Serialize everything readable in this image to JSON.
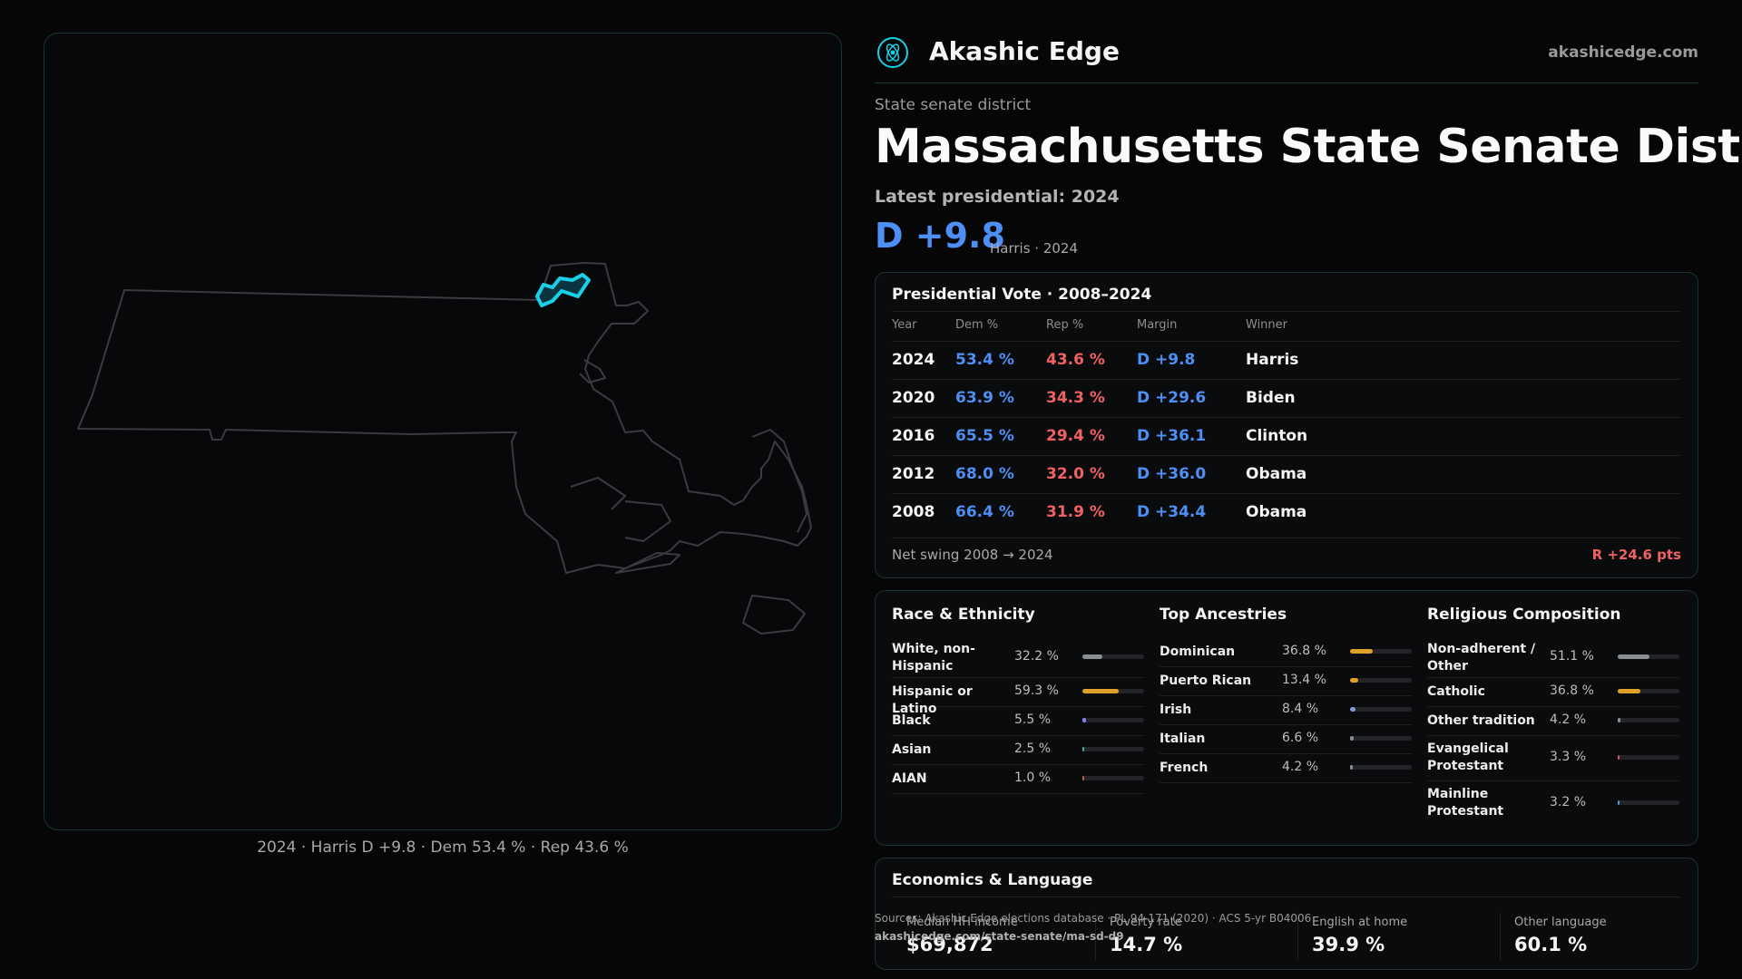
{
  "map": {
    "caption": "2024 · Harris D +9.8 · Dem 53.4 % · Rep 43.6 %"
  },
  "brand": {
    "name": "Akashic Edge",
    "site": "akashicedge.com",
    "logo_icon": "atom-logo-icon"
  },
  "header": {
    "kicker": "State senate district",
    "title": "Massachusetts State Senate District D",
    "latest_label": "Latest presidential: 2024",
    "margin": "D +9.8",
    "margin_sub": "Harris · 2024"
  },
  "presidential": {
    "title": "Presidential Vote · 2008–2024",
    "headers": [
      "Year",
      "Dem %",
      "Rep %",
      "Margin",
      "Winner"
    ],
    "rows": [
      {
        "year": "2024",
        "dem": "53.4 %",
        "rep": "43.6 %",
        "margin": "D +9.8",
        "winner": "Harris"
      },
      {
        "year": "2020",
        "dem": "63.9 %",
        "rep": "34.3 %",
        "margin": "D +29.6",
        "winner": "Biden"
      },
      {
        "year": "2016",
        "dem": "65.5 %",
        "rep": "29.4 %",
        "margin": "D +36.1",
        "winner": "Clinton"
      },
      {
        "year": "2012",
        "dem": "68.0 %",
        "rep": "32.0 %",
        "margin": "D +36.0",
        "winner": "Obama"
      },
      {
        "year": "2008",
        "dem": "66.4 %",
        "rep": "31.9 %",
        "margin": "D +34.4",
        "winner": "Obama"
      }
    ],
    "swing_label": "Net swing 2008 → 2024",
    "swing_value": "R +24.6 pts"
  },
  "race": {
    "title": "Race & Ethnicity",
    "items": [
      {
        "label": "White, non-Hispanic",
        "value": "32.2 %",
        "pct": 32.2,
        "color": "#8a8d93"
      },
      {
        "label": "Hispanic or Latino",
        "value": "59.3 %",
        "pct": 59.3,
        "color": "#e0a12a"
      },
      {
        "label": "Black",
        "value": "5.5 %",
        "pct": 5.5,
        "color": "#8a7cf0"
      },
      {
        "label": "Asian",
        "value": "2.5 %",
        "pct": 2.5,
        "color": "#3bb39a"
      },
      {
        "label": "AIAN",
        "value": "1.0 %",
        "pct": 1.0,
        "color": "#c0603a"
      }
    ]
  },
  "ancestry": {
    "title": "Top Ancestries",
    "items": [
      {
        "label": "Dominican",
        "value": "36.8 %",
        "pct": 36.8,
        "color": "#e0a12a"
      },
      {
        "label": "Puerto Rican",
        "value": "13.4 %",
        "pct": 13.4,
        "color": "#e0a12a"
      },
      {
        "label": "Irish",
        "value": "8.4 %",
        "pct": 8.4,
        "color": "#7f9bd8"
      },
      {
        "label": "Italian",
        "value": "6.6 %",
        "pct": 6.6,
        "color": "#8a8d93"
      },
      {
        "label": "French",
        "value": "4.2 %",
        "pct": 4.2,
        "color": "#8a8d93"
      }
    ]
  },
  "religion": {
    "title": "Religious Composition",
    "items": [
      {
        "label": "Non-adherent / Other",
        "value": "51.1 %",
        "pct": 51.1,
        "color": "#8a8d93"
      },
      {
        "label": "Catholic",
        "value": "36.8 %",
        "pct": 36.8,
        "color": "#e0a12a"
      },
      {
        "label": "Other tradition",
        "value": "4.2 %",
        "pct": 4.2,
        "color": "#8a8d93"
      },
      {
        "label": "Evangelical Protestant",
        "value": "3.3 %",
        "pct": 3.3,
        "color": "#d0506a"
      },
      {
        "label": "Mainline Protestant",
        "value": "3.2 %",
        "pct": 3.2,
        "color": "#5a8fd8"
      }
    ]
  },
  "economics": {
    "title": "Economics & Language",
    "stats": [
      {
        "label": "Median HH income",
        "value": "$69,872"
      },
      {
        "label": "Poverty rate",
        "value": "14.7 %"
      },
      {
        "label": "English at home",
        "value": "39.9 %"
      },
      {
        "label": "Other language",
        "value": "60.1 %"
      }
    ]
  },
  "footer": {
    "sources": "Sources: Akashic Edge elections database · PL 94-171 (2020) · ACS 5-yr B04006",
    "url": "akashicedge.com/state-senate/ma-sd-d9"
  },
  "colors": {
    "dem": "#4d8ff5",
    "rep": "#f06161",
    "accent": "#19d0e8",
    "panel_border": "#173539"
  }
}
